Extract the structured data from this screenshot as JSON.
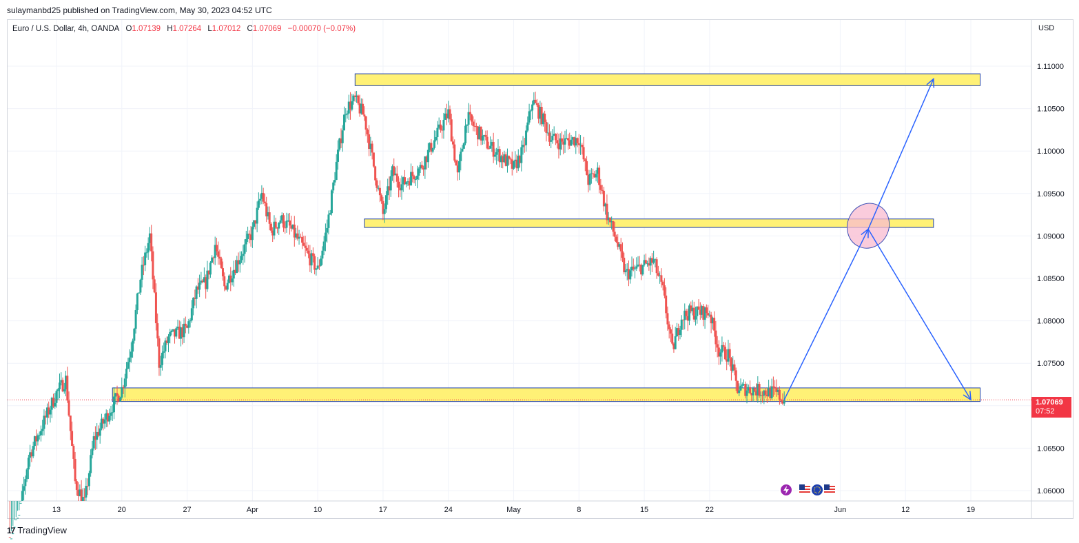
{
  "header": {
    "publisher": "sulaymanbd25 published on TradingView.com, May 30, 2023 04:52 UTC"
  },
  "legend": {
    "symbol": "Euro / U.S. Dollar, 4h, OANDA",
    "o_label": "O",
    "o_value": "1.07139",
    "h_label": "H",
    "h_value": "1.07264",
    "l_label": "L",
    "l_value": "1.07012",
    "c_label": "C",
    "c_value": "1.07069",
    "change": "−0.00070 (−0.07%)"
  },
  "price_axis": {
    "currency": "USD",
    "current_price": "1.07069",
    "countdown": "07:52"
  },
  "footer": {
    "brand": "TradingView",
    "logo_text": "17"
  },
  "colors": {
    "up": "#26a69a",
    "down": "#ef5350",
    "zone_fill": "#fff176",
    "zone_border": "#1e40af",
    "arrow": "#2962ff",
    "ellipse_fill": "#f8bbd0",
    "price_tag": "#f23645"
  },
  "events": [
    "flash-icon",
    "us-flag-icon",
    "eu-flag-icon",
    "us-flag-icon"
  ],
  "chart_data": {
    "type": "candlestick",
    "title": "Euro / U.S. Dollar, 4h, OANDA",
    "xlabel": "",
    "ylabel": "",
    "currency": "USD",
    "ylim": [
      1.0592,
      1.1173
    ],
    "y_ticks": [
      "1.11000",
      "1.10500",
      "1.10000",
      "1.09500",
      "1.09000",
      "1.08500",
      "1.08000",
      "1.07500",
      "1.07000",
      "1.06500",
      "1.06000"
    ],
    "x_ticks": [
      "13",
      "20",
      "27",
      "Apr",
      "10",
      "17",
      "24",
      "May",
      "8",
      "15",
      "22",
      "Jun",
      "12",
      "19"
    ],
    "x_tick_dates": [
      "2023-03-13",
      "2023-03-20",
      "2023-03-27",
      "2023-04-03",
      "2023-04-10",
      "2023-04-17",
      "2023-04-24",
      "2023-05-01",
      "2023-05-08",
      "2023-05-15",
      "2023-05-22",
      "2023-06-05",
      "2023-06-12",
      "2023-06-19"
    ],
    "grid": true,
    "last_price": 1.07069,
    "price_path": [
      [
        "2023-03-08",
        1.0545
      ],
      [
        "2023-03-09",
        1.0568
      ],
      [
        "2023-03-10",
        1.064
      ],
      [
        "2023-03-13",
        1.0715
      ],
      [
        "2023-03-14",
        1.0731
      ],
      [
        "2023-03-15",
        1.061
      ],
      [
        "2023-03-16",
        1.0585
      ],
      [
        "2023-03-17",
        1.066
      ],
      [
        "2023-03-20",
        1.072
      ],
      [
        "2023-03-21",
        1.077
      ],
      [
        "2023-03-22",
        1.085
      ],
      [
        "2023-03-23",
        1.09
      ],
      [
        "2023-03-24",
        1.075
      ],
      [
        "2023-03-25",
        1.078
      ],
      [
        "2023-03-27",
        1.079
      ],
      [
        "2023-03-28",
        1.0835
      ],
      [
        "2023-03-29",
        1.0845
      ],
      [
        "2023-03-30",
        1.089
      ],
      [
        "2023-03-31",
        1.084
      ],
      [
        "2023-04-03",
        1.0905
      ],
      [
        "2023-04-04",
        1.095
      ],
      [
        "2023-04-05",
        1.0905
      ],
      [
        "2023-04-06",
        1.092
      ],
      [
        "2023-04-07",
        1.091
      ],
      [
        "2023-04-10",
        1.086
      ],
      [
        "2023-04-11",
        1.091
      ],
      [
        "2023-04-12",
        1.0985
      ],
      [
        "2023-04-13",
        1.105
      ],
      [
        "2023-04-14",
        1.106
      ],
      [
        "2023-04-15",
        1.104
      ],
      [
        "2023-04-17",
        1.0925
      ],
      [
        "2023-04-18",
        1.0975
      ],
      [
        "2023-04-19",
        1.096
      ],
      [
        "2023-04-20",
        1.097
      ],
      [
        "2023-04-21",
        1.098
      ],
      [
        "2023-04-24",
        1.1045
      ],
      [
        "2023-04-25",
        1.097
      ],
      [
        "2023-04-26",
        1.104
      ],
      [
        "2023-04-27",
        1.1025
      ],
      [
        "2023-04-28",
        1.101
      ],
      [
        "2023-05-01",
        1.098
      ],
      [
        "2023-05-02",
        1.1
      ],
      [
        "2023-05-03",
        1.106
      ],
      [
        "2023-05-04",
        1.104
      ],
      [
        "2023-05-05",
        1.1015
      ],
      [
        "2023-05-06",
        1.101
      ],
      [
        "2023-05-08",
        1.1015
      ],
      [
        "2023-05-09",
        1.0965
      ],
      [
        "2023-05-10",
        1.0975
      ],
      [
        "2023-05-11",
        1.0925
      ],
      [
        "2023-05-12",
        1.0895
      ],
      [
        "2023-05-13",
        1.0855
      ],
      [
        "2023-05-15",
        1.0865
      ],
      [
        "2023-05-16",
        1.087
      ],
      [
        "2023-05-17",
        1.0835
      ],
      [
        "2023-05-18",
        1.0765
      ],
      [
        "2023-05-19",
        1.0805
      ],
      [
        "2023-05-20",
        1.081
      ],
      [
        "2023-05-22",
        1.081
      ],
      [
        "2023-05-23",
        1.0765
      ],
      [
        "2023-05-24",
        1.076
      ],
      [
        "2023-05-25",
        1.072
      ],
      [
        "2023-05-26",
        1.072
      ],
      [
        "2023-05-29",
        1.0715
      ],
      [
        "2023-05-30",
        1.07069
      ]
    ],
    "zones": [
      {
        "name": "resistance-zone",
        "from": "2023-04-14",
        "to": "2023-06-20",
        "low": 1.1077,
        "high": 1.1091
      },
      {
        "name": "middle-zone",
        "from": "2023-04-15",
        "to": "2023-06-15",
        "low": 1.091,
        "high": 1.092
      },
      {
        "name": "support-zone",
        "from": "2023-03-19",
        "to": "2023-06-20",
        "low": 1.0705,
        "high": 1.0721
      }
    ],
    "projection_paths": [
      {
        "name": "projection-up",
        "points": [
          [
            "2023-05-30",
            1.0707
          ],
          [
            "2023-06-08",
            1.0908
          ],
          [
            "2023-06-15",
            1.1085
          ]
        ]
      },
      {
        "name": "projection-down",
        "points": [
          [
            "2023-06-08",
            1.0908
          ],
          [
            "2023-06-19",
            1.0707
          ]
        ]
      }
    ],
    "highlight": {
      "center": [
        "2023-06-08",
        1.0912
      ],
      "label": "target-area"
    }
  }
}
